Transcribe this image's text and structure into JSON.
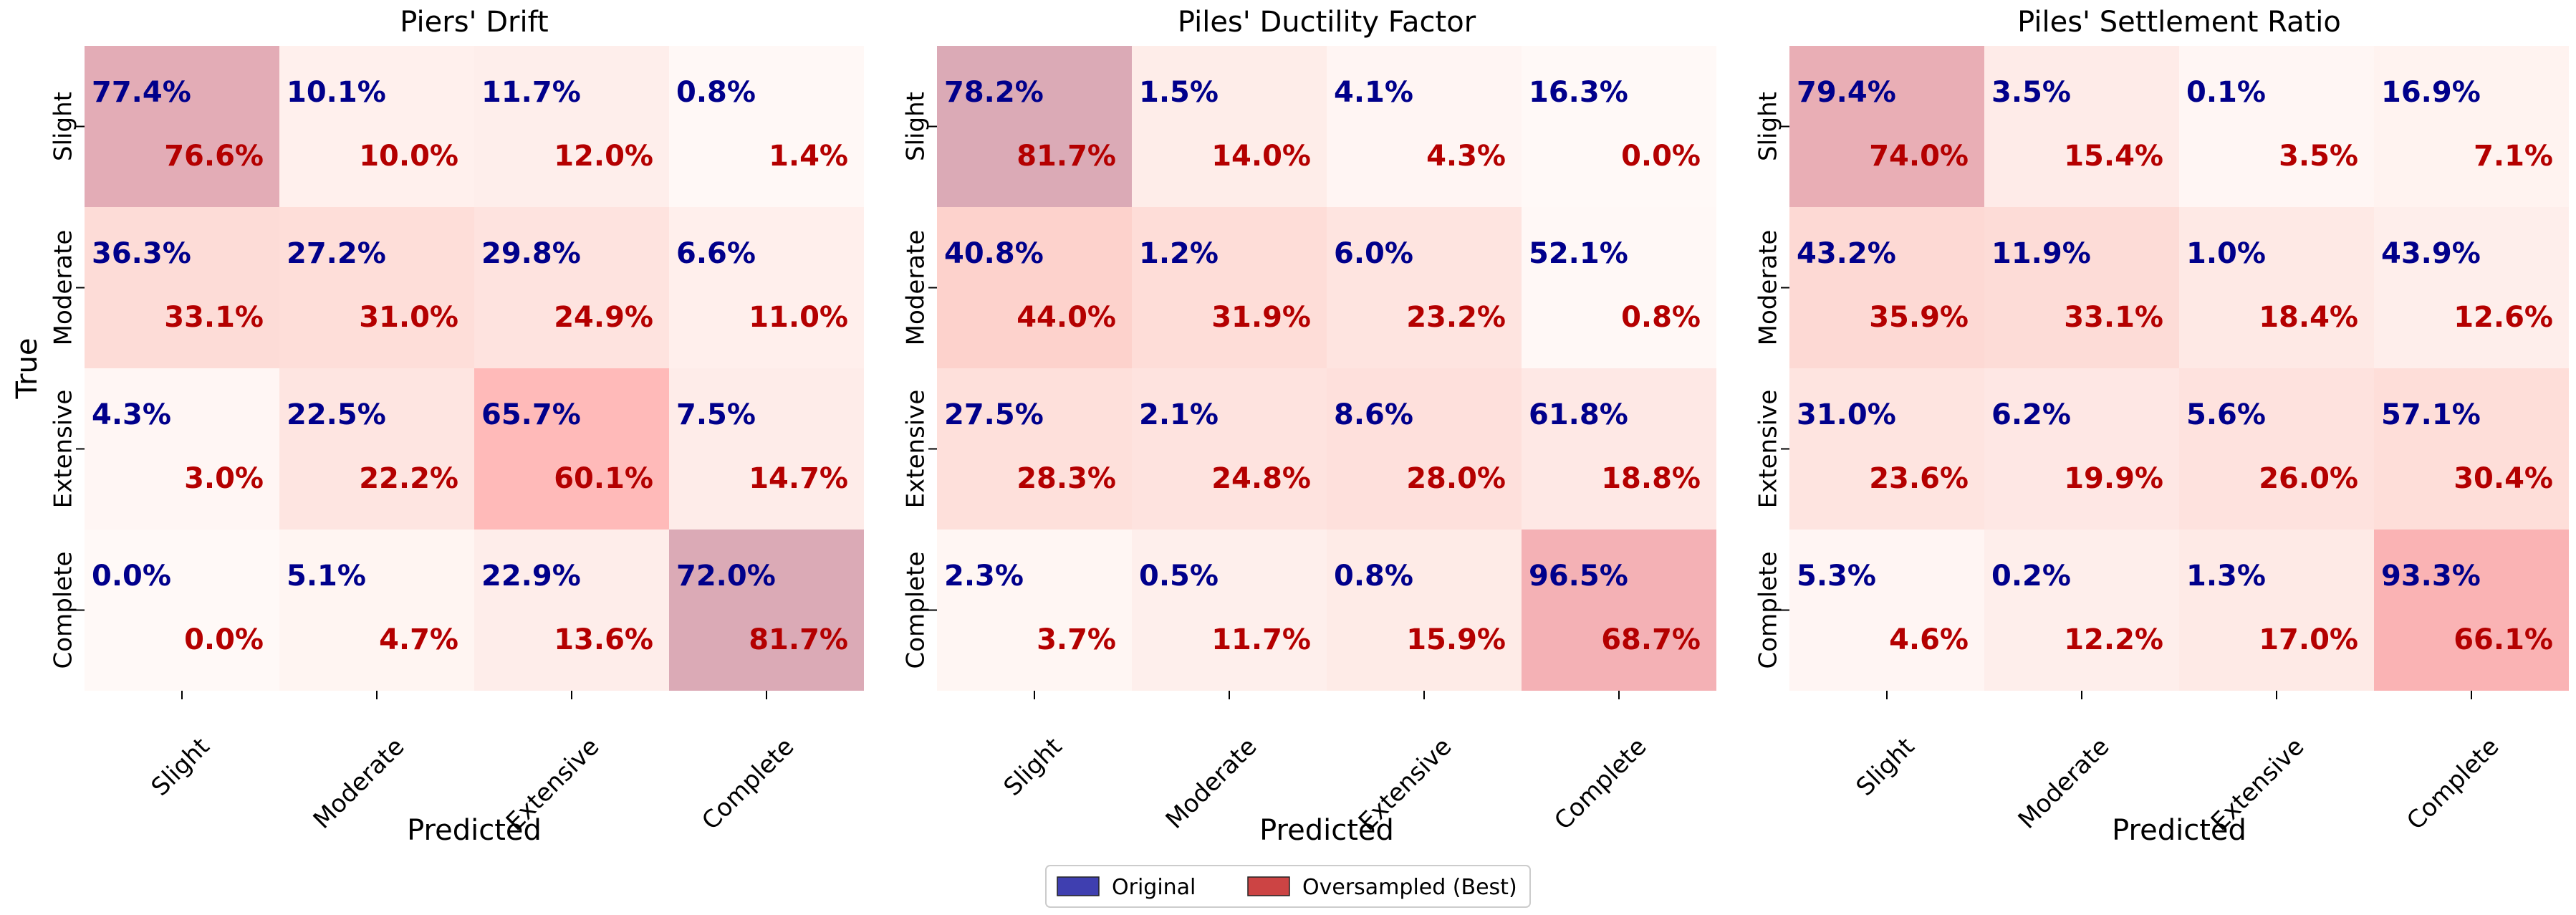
{
  "chart_data": [
    {
      "type": "heatmap",
      "title": "Piers' Drift",
      "xlabel": "Predicted",
      "ylabel": "True",
      "categories": [
        "Slight",
        "Moderate",
        "Extensive",
        "Complete"
      ],
      "original": [
        [
          "77.4%",
          "10.1%",
          "11.7%",
          "0.8%"
        ],
        [
          "36.3%",
          "27.2%",
          "29.8%",
          "6.6%"
        ],
        [
          "4.3%",
          "22.5%",
          "65.7%",
          "7.5%"
        ],
        [
          "0.0%",
          "5.1%",
          "22.9%",
          "72.0%"
        ]
      ],
      "oversampled": [
        [
          "76.6%",
          "10.0%",
          "12.0%",
          "1.4%"
        ],
        [
          "33.1%",
          "31.0%",
          "24.9%",
          "11.0%"
        ],
        [
          "3.0%",
          "22.2%",
          "60.1%",
          "14.7%"
        ],
        [
          "0.0%",
          "4.7%",
          "13.6%",
          "81.7%"
        ]
      ]
    },
    {
      "type": "heatmap",
      "title": "Piles' Ductility Factor",
      "xlabel": "Predicted",
      "ylabel": "",
      "categories": [
        "Slight",
        "Moderate",
        "Extensive",
        "Complete"
      ],
      "original": [
        [
          "78.2%",
          "1.5%",
          "4.1%",
          "16.3%"
        ],
        [
          "40.8%",
          "1.2%",
          "6.0%",
          "52.1%"
        ],
        [
          "27.5%",
          "2.1%",
          "8.6%",
          "61.8%"
        ],
        [
          "2.3%",
          "0.5%",
          "0.8%",
          "96.5%"
        ]
      ],
      "oversampled": [
        [
          "81.7%",
          "14.0%",
          "4.3%",
          "0.0%"
        ],
        [
          "44.0%",
          "31.9%",
          "23.2%",
          "0.8%"
        ],
        [
          "28.3%",
          "24.8%",
          "28.0%",
          "18.8%"
        ],
        [
          "3.7%",
          "11.7%",
          "15.9%",
          "68.7%"
        ]
      ]
    },
    {
      "type": "heatmap",
      "title": "Piles' Settlement Ratio",
      "xlabel": "Predicted",
      "ylabel": "",
      "categories": [
        "Slight",
        "Moderate",
        "Extensive",
        "Complete"
      ],
      "original": [
        [
          "79.4%",
          "3.5%",
          "0.1%",
          "16.9%"
        ],
        [
          "43.2%",
          "11.9%",
          "1.0%",
          "43.9%"
        ],
        [
          "31.0%",
          "6.2%",
          "5.6%",
          "57.1%"
        ],
        [
          "5.3%",
          "0.2%",
          "1.3%",
          "93.3%"
        ]
      ],
      "oversampled": [
        [
          "74.0%",
          "15.4%",
          "3.5%",
          "7.1%"
        ],
        [
          "35.9%",
          "33.1%",
          "18.4%",
          "12.6%"
        ],
        [
          "23.6%",
          "19.9%",
          "26.0%",
          "30.4%"
        ],
        [
          "4.6%",
          "12.2%",
          "17.0%",
          "66.1%"
        ]
      ]
    }
  ],
  "legend": {
    "items": [
      {
        "label": "Original",
        "color": "#3f3fb0"
      },
      {
        "label": "Oversampled (Best)",
        "color": "#cc4444"
      }
    ]
  },
  "colors": {
    "original_text": "#00008b",
    "oversampled_text": "#b40000",
    "diag_low": "#fff7f5",
    "diag_high": "#dbaab6"
  }
}
